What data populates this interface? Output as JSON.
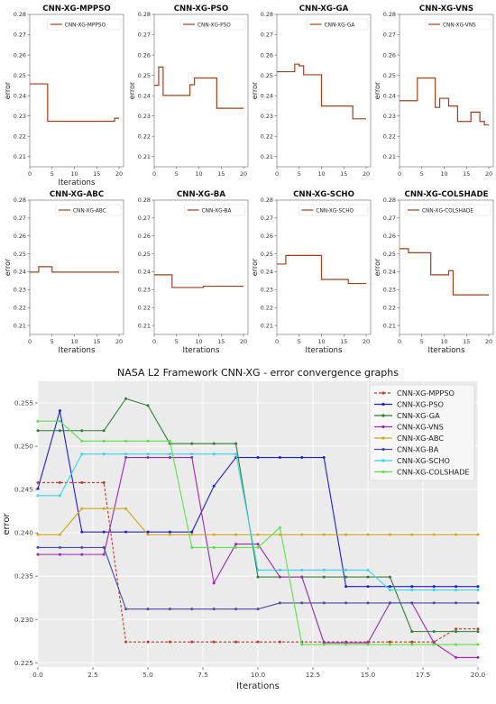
{
  "chart_data": {
    "type": "line",
    "small_multiples": [
      {
        "title": "CNN-XG-MPPSO",
        "legend": "CNN-XG-MPPSO",
        "xlabel": "Iterations",
        "ylabel": "error",
        "x": [
          0,
          1,
          2,
          3,
          4,
          5,
          6,
          7,
          8,
          9,
          10,
          11,
          12,
          13,
          14,
          15,
          16,
          17,
          18,
          19,
          20
        ],
        "values": [
          0.2458,
          0.2458,
          0.2458,
          0.2458,
          0.2274,
          0.2274,
          0.2274,
          0.2274,
          0.2274,
          0.2274,
          0.2274,
          0.2274,
          0.2274,
          0.2274,
          0.2274,
          0.2274,
          0.2274,
          0.2274,
          0.2274,
          0.2289,
          0.2289
        ]
      },
      {
        "title": "CNN-XG-PSO",
        "legend": "CNN-XG-PSO",
        "xlabel": "",
        "ylabel": "error",
        "x": [
          0,
          1,
          2,
          3,
          4,
          5,
          6,
          7,
          8,
          9,
          10,
          11,
          12,
          13,
          14,
          15,
          16,
          17,
          18,
          19,
          20
        ],
        "values": [
          0.2451,
          0.2541,
          0.2401,
          0.2401,
          0.2401,
          0.2401,
          0.2401,
          0.2401,
          0.2454,
          0.2487,
          0.2487,
          0.2487,
          0.2487,
          0.2487,
          0.2338,
          0.2338,
          0.2338,
          0.2338,
          0.2338,
          0.2338,
          0.2338
        ]
      },
      {
        "title": "CNN-XG-GA",
        "legend": "CNN-XG-GA",
        "xlabel": "",
        "ylabel": "error",
        "x": [
          0,
          1,
          2,
          3,
          4,
          5,
          6,
          7,
          8,
          9,
          10,
          11,
          12,
          13,
          14,
          15,
          16,
          17,
          18,
          19,
          20
        ],
        "values": [
          0.2518,
          0.2518,
          0.2518,
          0.2518,
          0.2555,
          0.2547,
          0.2503,
          0.2503,
          0.2503,
          0.2503,
          0.2349,
          0.2349,
          0.2349,
          0.2349,
          0.2349,
          0.2349,
          0.2349,
          0.2286,
          0.2286,
          0.2286,
          0.2286
        ]
      },
      {
        "title": "CNN-XG-VNS",
        "legend": "CNN-XG-VNS",
        "xlabel": "",
        "ylabel": "error",
        "x": [
          0,
          1,
          2,
          3,
          4,
          5,
          6,
          7,
          8,
          9,
          10,
          11,
          12,
          13,
          14,
          15,
          16,
          17,
          18,
          19,
          20
        ],
        "values": [
          0.2375,
          0.2375,
          0.2375,
          0.2375,
          0.2487,
          0.2487,
          0.2487,
          0.2487,
          0.2342,
          0.2387,
          0.2387,
          0.2349,
          0.2349,
          0.2273,
          0.2273,
          0.2273,
          0.2319,
          0.2319,
          0.2273,
          0.2256,
          0.2256
        ]
      },
      {
        "title": "CNN-XG-ABC",
        "legend": "CNN-XG-ABC",
        "xlabel": "Iterations",
        "ylabel": "error",
        "x": [
          0,
          1,
          2,
          3,
          4,
          5,
          6,
          7,
          8,
          9,
          10,
          11,
          12,
          13,
          14,
          15,
          16,
          17,
          18,
          19,
          20
        ],
        "values": [
          0.2398,
          0.2398,
          0.2428,
          0.2428,
          0.2428,
          0.2398,
          0.2398,
          0.2398,
          0.2398,
          0.2398,
          0.2398,
          0.2398,
          0.2398,
          0.2398,
          0.2398,
          0.2398,
          0.2398,
          0.2398,
          0.2398,
          0.2398,
          0.2398
        ]
      },
      {
        "title": "CNN-XG-BA",
        "legend": "CNN-XG-BA",
        "xlabel": "Iterations",
        "ylabel": "",
        "x": [
          0,
          1,
          2,
          3,
          4,
          5,
          6,
          7,
          8,
          9,
          10,
          11,
          12,
          13,
          14,
          15,
          16,
          17,
          18,
          19,
          20
        ],
        "values": [
          0.2383,
          0.2383,
          0.2383,
          0.2383,
          0.2312,
          0.2312,
          0.2312,
          0.2312,
          0.2312,
          0.2312,
          0.2312,
          0.2319,
          0.2319,
          0.2319,
          0.2319,
          0.2319,
          0.2319,
          0.2319,
          0.2319,
          0.2319,
          0.2319
        ]
      },
      {
        "title": "CNN-XG-SCHO",
        "legend": "CNN-XG-SCHO",
        "xlabel": "Iterations",
        "ylabel": "error",
        "x": [
          0,
          1,
          2,
          3,
          4,
          5,
          6,
          7,
          8,
          9,
          10,
          11,
          12,
          13,
          14,
          15,
          16,
          17,
          18,
          19,
          20
        ],
        "values": [
          0.2443,
          0.2443,
          0.2491,
          0.2491,
          0.2491,
          0.2491,
          0.2491,
          0.2491,
          0.2491,
          0.2491,
          0.2357,
          0.2357,
          0.2357,
          0.2357,
          0.2357,
          0.2357,
          0.2334,
          0.2334,
          0.2334,
          0.2334,
          0.2334
        ]
      },
      {
        "title": "CNN-XG-COLSHADE",
        "legend": "CNN-XG-COLSHADE",
        "xlabel": "Iterations",
        "ylabel": "error",
        "x": [
          0,
          1,
          2,
          3,
          4,
          5,
          6,
          7,
          8,
          9,
          10,
          11,
          12,
          13,
          14,
          15,
          16,
          17,
          18,
          19,
          20
        ],
        "values": [
          0.2529,
          0.2529,
          0.2506,
          0.2506,
          0.2506,
          0.2506,
          0.2506,
          0.2383,
          0.2383,
          0.2383,
          0.2383,
          0.2406,
          0.2271,
          0.2271,
          0.2271,
          0.2271,
          0.2271,
          0.2271,
          0.2271,
          0.2271,
          0.2271
        ]
      }
    ],
    "small_ylim": [
      0.205,
      0.28
    ],
    "small_yticks": [
      "0.21",
      "0.22",
      "0.23",
      "0.24",
      "0.25",
      "0.26",
      "0.27",
      "0.28"
    ],
    "small_xlim": [
      0,
      21
    ],
    "small_xticks": [
      "0",
      "5",
      "10",
      "15",
      "20"
    ],
    "small_line_color": "#a0411d",
    "main": {
      "title": "NASA L2 Framework CNN-XG -  error convergence graphs",
      "xlabel": "Iterations",
      "ylabel": "error",
      "xlim": [
        0,
        20
      ],
      "ylim": [
        0.2245,
        0.2575
      ],
      "xticks": [
        "0.0",
        "2.5",
        "5.0",
        "7.5",
        "10.0",
        "12.5",
        "15.0",
        "17.5",
        "20.0"
      ],
      "yticks": [
        "0.225",
        "0.230",
        "0.235",
        "0.240",
        "0.245",
        "0.250",
        "0.255"
      ],
      "legend_placement": "top-right",
      "grid": true,
      "x": [
        0,
        1,
        2,
        3,
        4,
        5,
        6,
        7,
        8,
        9,
        10,
        11,
        12,
        13,
        14,
        15,
        16,
        17,
        18,
        19,
        20
      ],
      "series": [
        {
          "name": "CNN-XG-MPPSO",
          "color": "#c0392b",
          "dashed": true,
          "values": [
            0.2458,
            0.2458,
            0.2458,
            0.2458,
            0.2274,
            0.2274,
            0.2274,
            0.2274,
            0.2274,
            0.2274,
            0.2274,
            0.2274,
            0.2274,
            0.2274,
            0.2274,
            0.2274,
            0.2274,
            0.2274,
            0.2274,
            0.2289,
            0.2289
          ]
        },
        {
          "name": "CNN-XG-PSO",
          "color": "#1f1fd1",
          "dashed": false,
          "values": [
            0.2451,
            0.2541,
            0.2401,
            0.2401,
            0.2401,
            0.2401,
            0.2401,
            0.2401,
            0.2454,
            0.2487,
            0.2487,
            0.2487,
            0.2487,
            0.2487,
            0.2338,
            0.2338,
            0.2338,
            0.2338,
            0.2338,
            0.2338,
            0.2338
          ]
        },
        {
          "name": "CNN-XG-GA",
          "color": "#2e7d32",
          "dashed": false,
          "values": [
            0.2518,
            0.2518,
            0.2518,
            0.2518,
            0.2555,
            0.2547,
            0.2503,
            0.2503,
            0.2503,
            0.2503,
            0.2349,
            0.2349,
            0.2349,
            0.2349,
            0.2349,
            0.2349,
            0.2349,
            0.2286,
            0.2286,
            0.2286,
            0.2286
          ]
        },
        {
          "name": "CNN-XG-VNS",
          "color": "#9c27b0",
          "dashed": false,
          "values": [
            0.2375,
            0.2375,
            0.2375,
            0.2375,
            0.2487,
            0.2487,
            0.2487,
            0.2487,
            0.2342,
            0.2387,
            0.2387,
            0.2349,
            0.2349,
            0.2273,
            0.2273,
            0.2273,
            0.2319,
            0.2319,
            0.2273,
            0.2256,
            0.2256
          ]
        },
        {
          "name": "CNN-XG-ABC",
          "color": "#d4a520",
          "dashed": false,
          "values": [
            0.2398,
            0.2398,
            0.2428,
            0.2428,
            0.2428,
            0.2398,
            0.2398,
            0.2398,
            0.2398,
            0.2398,
            0.2398,
            0.2398,
            0.2398,
            0.2398,
            0.2398,
            0.2398,
            0.2398,
            0.2398,
            0.2398,
            0.2398,
            0.2398
          ]
        },
        {
          "name": "CNN-XG-BA",
          "color": "#4a4aa8",
          "dashed": false,
          "values": [
            0.2383,
            0.2383,
            0.2383,
            0.2383,
            0.2312,
            0.2312,
            0.2312,
            0.2312,
            0.2312,
            0.2312,
            0.2312,
            0.2319,
            0.2319,
            0.2319,
            0.2319,
            0.2319,
            0.2319,
            0.2319,
            0.2319,
            0.2319,
            0.2319
          ]
        },
        {
          "name": "CNN-XG-SCHO",
          "color": "#33d6ef",
          "dashed": false,
          "values": [
            0.2443,
            0.2443,
            0.2491,
            0.2491,
            0.2491,
            0.2491,
            0.2491,
            0.2491,
            0.2491,
            0.2491,
            0.2357,
            0.2357,
            0.2357,
            0.2357,
            0.2357,
            0.2357,
            0.2334,
            0.2334,
            0.2334,
            0.2334,
            0.2334
          ]
        },
        {
          "name": "CNN-XG-COLSHADE",
          "color": "#5fe04a",
          "dashed": false,
          "values": [
            0.2529,
            0.2529,
            0.2506,
            0.2506,
            0.2506,
            0.2506,
            0.2506,
            0.2383,
            0.2383,
            0.2383,
            0.2383,
            0.2406,
            0.2271,
            0.2271,
            0.2271,
            0.2271,
            0.2271,
            0.2271,
            0.2271,
            0.2271,
            0.2271
          ]
        }
      ]
    }
  }
}
